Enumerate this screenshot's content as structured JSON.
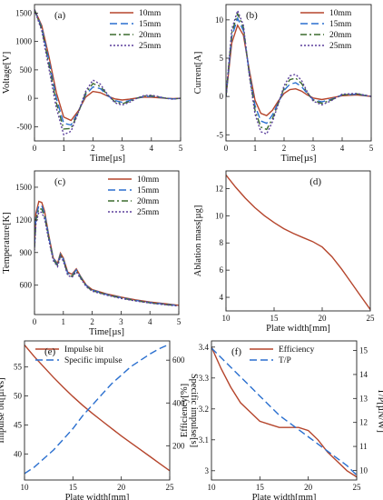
{
  "colors": {
    "c1": "#b5452c",
    "c2": "#2a6fcf",
    "c3": "#3c6b2f",
    "c4": "#5b3f9c",
    "frame": "#222222"
  },
  "chart_data": [
    {
      "type": "line",
      "panel_label": "(a)",
      "xlabel": "Time[µs]",
      "ylabel": "Voltage[V]",
      "xlim": [
        0,
        5
      ],
      "ylim": [
        -750,
        1650
      ],
      "xticks": [
        0,
        1,
        2,
        3,
        4,
        5
      ],
      "yticks": [
        -500,
        0,
        500,
        1000,
        1500
      ],
      "legend": "top-right",
      "series": [
        {
          "name": "10mm",
          "style": "solid",
          "x": [
            0,
            0.25,
            0.5,
            0.75,
            1,
            1.25,
            1.5,
            1.75,
            2,
            2.25,
            2.5,
            2.75,
            3,
            3.25,
            3.5,
            3.75,
            4,
            4.25,
            4.5,
            4.75,
            5
          ],
          "y": [
            1560,
            1280,
            720,
            100,
            -330,
            -390,
            -220,
            20,
            120,
            100,
            40,
            -10,
            -30,
            -15,
            5,
            20,
            20,
            10,
            0,
            -5,
            0
          ]
        },
        {
          "name": "15mm",
          "style": "dashed",
          "x": [
            0,
            0.25,
            0.5,
            0.75,
            1,
            1.25,
            1.5,
            1.75,
            2,
            2.25,
            2.5,
            2.75,
            3,
            3.25,
            3.5,
            3.75,
            4,
            4.25,
            4.5,
            4.75,
            5
          ],
          "y": [
            1560,
            1250,
            650,
            0,
            -440,
            -470,
            -240,
            60,
            200,
            170,
            50,
            -40,
            -70,
            -40,
            0,
            30,
            35,
            20,
            0,
            -10,
            0
          ]
        },
        {
          "name": "20mm",
          "style": "dash-dot",
          "x": [
            0,
            0.25,
            0.5,
            0.75,
            1,
            1.25,
            1.5,
            1.75,
            2,
            2.25,
            2.5,
            2.75,
            3,
            3.25,
            3.5,
            3.75,
            4,
            4.25,
            4.5,
            4.75,
            5
          ],
          "y": [
            1560,
            1220,
            580,
            -80,
            -540,
            -530,
            -250,
            90,
            260,
            210,
            60,
            -60,
            -95,
            -55,
            0,
            40,
            45,
            25,
            0,
            -12,
            0
          ]
        },
        {
          "name": "25mm",
          "style": "dotted",
          "x": [
            0,
            0.25,
            0.5,
            0.75,
            1,
            1.25,
            1.5,
            1.75,
            2,
            2.25,
            2.5,
            2.75,
            3,
            3.25,
            3.5,
            3.75,
            4,
            4.25,
            4.5,
            4.75,
            5
          ],
          "y": [
            1560,
            1190,
            510,
            -170,
            -640,
            -580,
            -250,
            120,
            320,
            250,
            70,
            -80,
            -120,
            -70,
            0,
            50,
            55,
            30,
            0,
            -15,
            0
          ]
        }
      ]
    },
    {
      "type": "line",
      "panel_label": "(b)",
      "xlabel": "Time[µs]",
      "ylabel": "Current[A]",
      "xlim": [
        0,
        5
      ],
      "ylim": [
        -5.8,
        12
      ],
      "xticks": [
        0,
        1,
        2,
        3,
        4,
        5
      ],
      "yticks": [
        -5,
        0,
        5,
        10
      ],
      "legend": "top-right",
      "series": [
        {
          "name": "10mm",
          "style": "solid",
          "x": [
            0,
            0.2,
            0.4,
            0.6,
            0.8,
            1,
            1.2,
            1.4,
            1.6,
            1.8,
            2,
            2.2,
            2.4,
            2.6,
            2.8,
            3,
            3.3,
            3.6,
            4,
            4.5,
            5
          ],
          "y": [
            0,
            7,
            9.3,
            8,
            3.5,
            -0.5,
            -2.2,
            -2.5,
            -1.8,
            -0.6,
            0.4,
            0.9,
            1,
            0.7,
            0.2,
            -0.2,
            -0.4,
            -0.2,
            0.1,
            0.2,
            0
          ]
        },
        {
          "name": "15mm",
          "style": "dashed",
          "x": [
            0,
            0.2,
            0.4,
            0.6,
            0.8,
            1,
            1.2,
            1.4,
            1.6,
            1.8,
            2,
            2.2,
            2.4,
            2.6,
            2.8,
            3,
            3.3,
            3.6,
            4,
            4.5,
            5
          ],
          "y": [
            0,
            7.8,
            10.2,
            8.6,
            3.2,
            -1.2,
            -3.2,
            -3.5,
            -2.4,
            -0.8,
            0.8,
            1.6,
            1.8,
            1.3,
            0.4,
            -0.4,
            -0.7,
            -0.4,
            0.2,
            0.3,
            0
          ]
        },
        {
          "name": "20mm",
          "style": "dash-dot",
          "x": [
            0,
            0.2,
            0.4,
            0.6,
            0.8,
            1,
            1.2,
            1.4,
            1.6,
            1.8,
            2,
            2.2,
            2.4,
            2.6,
            2.8,
            3,
            3.3,
            3.6,
            4,
            4.5,
            5
          ],
          "y": [
            0,
            8.3,
            10.8,
            9,
            3,
            -1.8,
            -4,
            -4.3,
            -2.9,
            -0.9,
            1.1,
            2.2,
            2.4,
            1.7,
            0.5,
            -0.5,
            -0.9,
            -0.5,
            0.2,
            0.35,
            0
          ]
        },
        {
          "name": "25mm",
          "style": "dotted",
          "x": [
            0,
            0.2,
            0.4,
            0.6,
            0.8,
            1,
            1.2,
            1.4,
            1.6,
            1.8,
            2,
            2.2,
            2.4,
            2.6,
            2.8,
            3,
            3.3,
            3.6,
            4,
            4.5,
            5
          ],
          "y": [
            0,
            8.8,
            11.2,
            9.3,
            2.8,
            -2.3,
            -4.6,
            -4.9,
            -3.3,
            -1,
            1.4,
            2.7,
            2.9,
            2.1,
            0.6,
            -0.6,
            -1.1,
            -0.6,
            0.3,
            0.4,
            0
          ]
        }
      ]
    },
    {
      "type": "line",
      "panel_label": "(c)",
      "xlabel": "Time[µs]",
      "ylabel": "Temperature[K]",
      "xlim": [
        0,
        5
      ],
      "ylim": [
        330,
        1650
      ],
      "xticks": [
        0,
        1,
        2,
        3,
        4,
        5
      ],
      "yticks": [
        600,
        900,
        1200,
        1500
      ],
      "legend": "top-right",
      "series": [
        {
          "name": "10mm",
          "style": "solid",
          "x": [
            0,
            0.05,
            0.15,
            0.25,
            0.35,
            0.5,
            0.65,
            0.8,
            0.9,
            1,
            1.15,
            1.3,
            1.45,
            1.6,
            1.8,
            2,
            2.5,
            3,
            3.5,
            4,
            4.5,
            5
          ],
          "y": [
            980,
            1260,
            1370,
            1360,
            1280,
            1050,
            850,
            800,
            895,
            850,
            720,
            700,
            750,
            680,
            600,
            560,
            520,
            490,
            465,
            445,
            430,
            415
          ]
        },
        {
          "name": "15mm",
          "style": "dashed",
          "x": [
            0,
            0.05,
            0.15,
            0.25,
            0.35,
            0.5,
            0.65,
            0.8,
            0.9,
            1,
            1.15,
            1.3,
            1.45,
            1.6,
            1.8,
            2,
            2.5,
            3,
            3.5,
            4,
            4.5,
            5
          ],
          "y": [
            960,
            1230,
            1330,
            1330,
            1260,
            1040,
            845,
            790,
            885,
            840,
            710,
            690,
            740,
            675,
            595,
            555,
            515,
            485,
            460,
            440,
            426,
            412
          ]
        },
        {
          "name": "20mm",
          "style": "dash-dot",
          "x": [
            0,
            0.05,
            0.15,
            0.25,
            0.35,
            0.5,
            0.65,
            0.8,
            0.9,
            1,
            1.15,
            1.3,
            1.45,
            1.6,
            1.8,
            2,
            2.5,
            3,
            3.5,
            4,
            4.5,
            5
          ],
          "y": [
            940,
            1200,
            1300,
            1300,
            1235,
            1025,
            835,
            780,
            875,
            830,
            700,
            680,
            730,
            668,
            590,
            550,
            512,
            482,
            458,
            438,
            423,
            410
          ]
        },
        {
          "name": "25mm",
          "style": "dotted",
          "x": [
            0,
            0.05,
            0.15,
            0.25,
            0.35,
            0.5,
            0.65,
            0.8,
            0.9,
            1,
            1.15,
            1.3,
            1.45,
            1.6,
            1.8,
            2,
            2.5,
            3,
            3.5,
            4,
            4.5,
            5
          ],
          "y": [
            920,
            1170,
            1270,
            1270,
            1210,
            1010,
            825,
            770,
            865,
            820,
            690,
            672,
            722,
            660,
            585,
            545,
            508,
            478,
            455,
            435,
            420,
            408
          ]
        }
      ]
    },
    {
      "type": "line",
      "panel_label": "(d)",
      "xlabel": "Plate width[mm]",
      "ylabel": "Ablation mass[µg]",
      "xlim": [
        10,
        25
      ],
      "ylim": [
        3,
        13.3
      ],
      "xticks": [
        10,
        15,
        20,
        25
      ],
      "yticks": [
        4,
        6,
        8,
        10,
        12
      ],
      "series": [
        {
          "name": "",
          "style": "solid",
          "x": [
            10,
            11,
            12,
            13,
            14,
            15,
            16,
            17,
            18,
            19,
            20,
            21,
            22,
            23,
            24,
            25
          ],
          "y": [
            13,
            12.1,
            11.3,
            10.6,
            10,
            9.5,
            9.05,
            8.7,
            8.4,
            8.1,
            7.7,
            7,
            6.1,
            5.1,
            4.1,
            3.1
          ]
        }
      ]
    },
    {
      "type": "line",
      "panel_label": "(e)",
      "xlabel": "Plate width[mm]",
      "ylabel": "Impulse bit[µNs]",
      "y2label": "Specific impulse[s]",
      "xlim": [
        10,
        25
      ],
      "ylim": [
        35.5,
        59.5
      ],
      "y2lim": [
        40,
        690
      ],
      "xticks": [
        10,
        15,
        20,
        25
      ],
      "yticks": [
        40,
        45,
        50,
        55
      ],
      "y2ticks": [
        200,
        400,
        600
      ],
      "legend": "top-center",
      "series": [
        {
          "name": "Impulse bit",
          "style": "solid",
          "axis": "left",
          "x": [
            10,
            11,
            12,
            13,
            14,
            15,
            16,
            17,
            18,
            19,
            20,
            21,
            22,
            23,
            24,
            25
          ],
          "y": [
            58.8,
            56.8,
            55,
            53.2,
            51.5,
            49.9,
            48.4,
            47,
            45.7,
            44.4,
            43.1,
            41.9,
            40.7,
            39.5,
            38.3,
            37.1
          ]
        },
        {
          "name": "Specific impulse",
          "style": "dashed",
          "axis": "right",
          "x": [
            10,
            11,
            12,
            13,
            14,
            15,
            16,
            17,
            18,
            19,
            20,
            21,
            22,
            23,
            24,
            25
          ],
          "y": [
            70,
            100,
            140,
            180,
            230,
            280,
            340,
            390,
            440,
            490,
            530,
            570,
            600,
            630,
            655,
            675
          ]
        }
      ]
    },
    {
      "type": "line",
      "panel_label": "(f)",
      "xlabel": "Plate width[mm]",
      "ylabel": "Efficiency[%]",
      "y2label": "T/P[µN/W]",
      "xlim": [
        10,
        25
      ],
      "ylim": [
        2.97,
        3.42
      ],
      "y2lim": [
        9.6,
        15.4
      ],
      "xticks": [
        10,
        15,
        20,
        25
      ],
      "yticks": [
        3.0,
        3.1,
        3.2,
        3.3,
        3.4
      ],
      "ytick_labels": [
        "3",
        "3.1",
        "3.2",
        "3.3",
        "3.4"
      ],
      "y2ticks": [
        10,
        11,
        12,
        13,
        14,
        15
      ],
      "legend": "top-center",
      "series": [
        {
          "name": "Efficiency",
          "style": "solid",
          "axis": "left",
          "x": [
            10,
            11,
            12,
            13,
            14,
            15,
            16,
            17,
            18,
            19,
            20,
            21,
            22,
            23,
            24,
            25
          ],
          "y": [
            3.4,
            3.33,
            3.27,
            3.22,
            3.19,
            3.16,
            3.15,
            3.14,
            3.14,
            3.14,
            3.13,
            3.1,
            3.06,
            3.03,
            3.0,
            2.98
          ]
        },
        {
          "name": "T/P",
          "style": "dashed",
          "axis": "right",
          "x": [
            10,
            11,
            12,
            13,
            14,
            15,
            16,
            17,
            18,
            19,
            20,
            21,
            22,
            23,
            24,
            25
          ],
          "y": [
            15.1,
            14.7,
            14.3,
            13.9,
            13.5,
            13.1,
            12.7,
            12.3,
            12.0,
            11.7,
            11.4,
            11.1,
            10.8,
            10.5,
            10.2,
            9.8
          ]
        }
      ]
    }
  ]
}
